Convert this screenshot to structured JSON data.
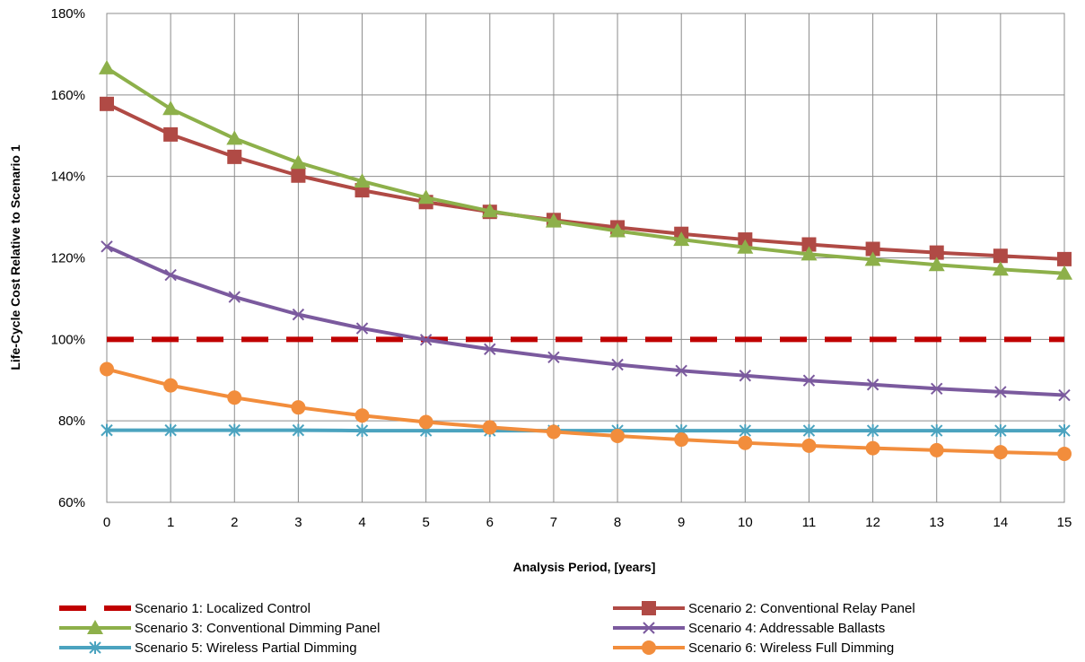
{
  "chart_data": {
    "type": "line",
    "title": "",
    "xlabel": "Analysis Period, [years]",
    "ylabel": "Life-Cycle Cost Relative to Scenario 1",
    "x": [
      0,
      1,
      2,
      3,
      4,
      5,
      6,
      7,
      8,
      9,
      10,
      11,
      12,
      13,
      14,
      15
    ],
    "x_tick_labels": [
      "0",
      "1",
      "2",
      "3",
      "4",
      "5",
      "6",
      "7",
      "8",
      "9",
      "10",
      "11",
      "12",
      "13",
      "14",
      "15"
    ],
    "xlim": [
      0,
      15
    ],
    "ylim": [
      60,
      180
    ],
    "y_ticks": [
      60,
      80,
      100,
      120,
      140,
      160,
      180
    ],
    "y_tick_labels": [
      "60%",
      "80%",
      "100%",
      "120%",
      "140%",
      "160%",
      "180%"
    ],
    "grid": true,
    "legend_position": "bottom",
    "series": [
      {
        "name": "Scenario 1: Localized Control",
        "color": "#C00000",
        "marker": "none",
        "dashed": true,
        "values": [
          100,
          100,
          100,
          100,
          100,
          100,
          100,
          100,
          100,
          100,
          100,
          100,
          100,
          100,
          100,
          100
        ]
      },
      {
        "name": "Scenario 2: Conventional Relay Panel",
        "color": "#B04A45",
        "marker": "square",
        "dashed": false,
        "values": [
          157.8,
          150.3,
          144.8,
          140.2,
          136.6,
          133.7,
          131.3,
          129.3,
          127.5,
          125.9,
          124.5,
          123.3,
          122.2,
          121.3,
          120.5,
          119.7
        ]
      },
      {
        "name": "Scenario 3: Conventional Dimming Panel",
        "color": "#8DB04A",
        "marker": "triangle",
        "dashed": false,
        "values": [
          166.6,
          156.6,
          149.3,
          143.4,
          138.8,
          134.8,
          131.5,
          129.0,
          126.6,
          124.5,
          122.6,
          120.9,
          119.6,
          118.3,
          117.2,
          116.2
        ]
      },
      {
        "name": "Scenario 4: Addressable Ballasts",
        "color": "#7B5A9E",
        "marker": "x",
        "dashed": false,
        "values": [
          122.8,
          115.8,
          110.4,
          106.1,
          102.7,
          99.9,
          97.6,
          95.6,
          93.8,
          92.3,
          91.1,
          89.9,
          88.9,
          87.9,
          87.1,
          86.3
        ]
      },
      {
        "name": "Scenario 5: Wireless Partial Dimming",
        "color": "#4BA3BF",
        "marker": "star",
        "dashed": false,
        "values": [
          77.7,
          77.7,
          77.7,
          77.7,
          77.6,
          77.6,
          77.6,
          77.6,
          77.6,
          77.6,
          77.6,
          77.6,
          77.6,
          77.6,
          77.6,
          77.6
        ]
      },
      {
        "name": "Scenario 6: Wireless Full Dimming",
        "color": "#F28D3C",
        "marker": "circle",
        "dashed": false,
        "values": [
          92.7,
          88.7,
          85.7,
          83.3,
          81.3,
          79.7,
          78.4,
          77.3,
          76.3,
          75.4,
          74.6,
          73.9,
          73.3,
          72.8,
          72.3,
          71.9
        ]
      }
    ]
  }
}
